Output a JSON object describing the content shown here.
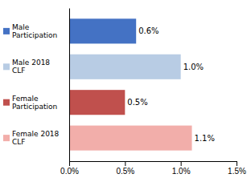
{
  "chart_data": {
    "type": "bar",
    "orientation": "horizontal",
    "categories": [
      "Male\nParticipation",
      "Male 2018\nCLF",
      "Female\nParticipation",
      "Female 2018\nCLF"
    ],
    "values": [
      0.006,
      0.01,
      0.005,
      0.011
    ],
    "value_labels": [
      "0.6%",
      "1.0%",
      "0.5%",
      "1.1%"
    ],
    "colors": [
      "#4472C4",
      "#B8CCE4",
      "#C0504D",
      "#F2AEAA"
    ],
    "data_labels": true,
    "xlim": [
      0,
      0.015
    ],
    "xticks": [
      {
        "value": 0.0,
        "label": "0.0%"
      },
      {
        "value": 0.005,
        "label": "0.5%"
      },
      {
        "value": 0.01,
        "label": "1.0%"
      },
      {
        "value": 0.015,
        "label": "1.5%"
      }
    ],
    "grid": false
  }
}
